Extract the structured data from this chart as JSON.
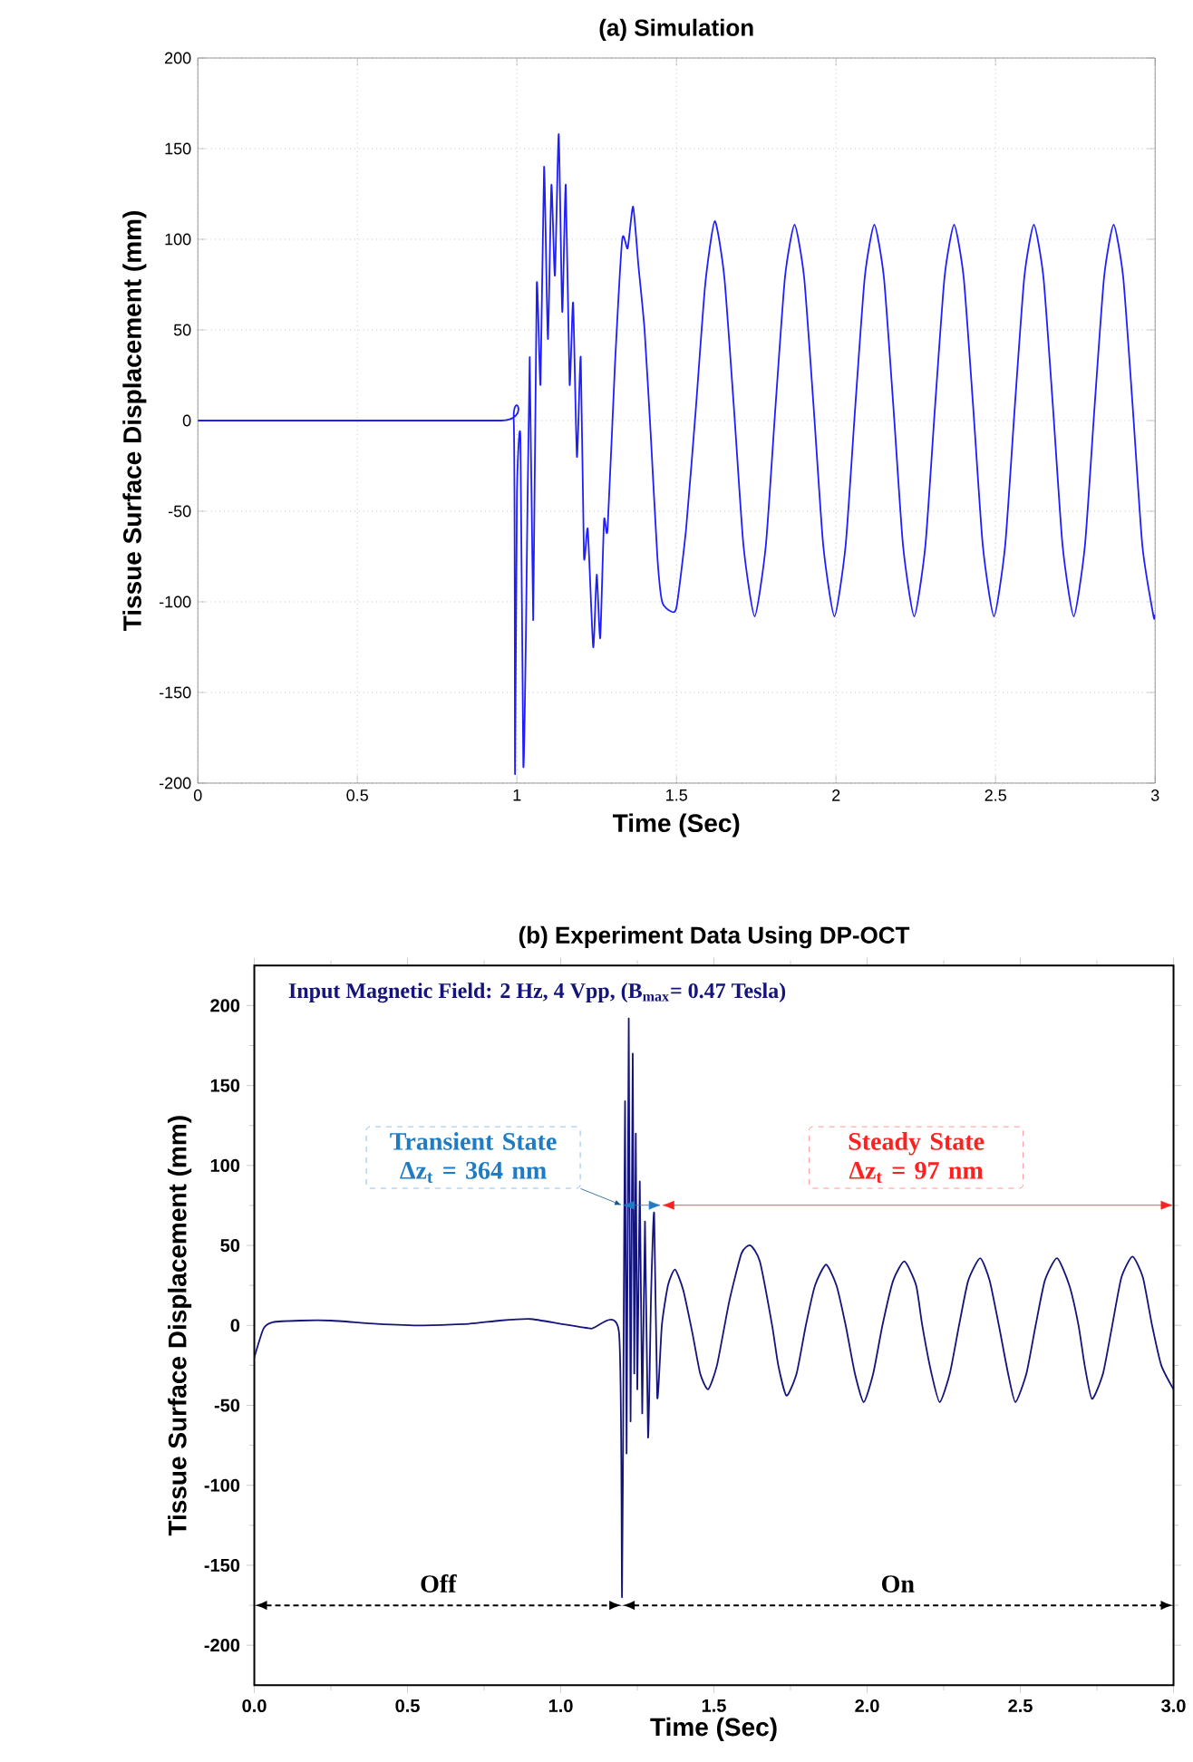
{
  "chart_data": [
    {
      "type": "line",
      "title": "(a) Simulation",
      "xlabel": "Time (Sec)",
      "ylabel": "Tissue Surface Displacement (mm)",
      "xlim": [
        0,
        3
      ],
      "ylim": [
        -200,
        200
      ],
      "xticks": [
        0,
        0.5,
        1,
        1.5,
        2,
        2.5,
        3
      ],
      "yticks": [
        -200,
        -150,
        -100,
        -50,
        0,
        50,
        100,
        150,
        200
      ],
      "grid": true,
      "series": [
        {
          "color": "#1e1eff",
          "x": [
            0,
            0.95,
            0.99,
            0.994,
            1.0,
            1.011,
            1.02,
            1.028,
            1.04,
            1.051,
            1.062,
            1.074,
            1.085,
            1.097,
            1.108,
            1.119,
            1.131,
            1.142,
            1.153,
            1.165,
            1.176,
            1.188,
            1.2,
            1.21,
            1.222,
            1.239,
            1.25,
            1.261,
            1.273,
            1.284,
            1.307,
            1.33,
            1.347,
            1.364,
            1.381,
            1.4,
            1.42,
            1.44,
            1.455,
            1.48,
            1.5,
            1.53,
            1.56,
            1.59,
            1.62,
            1.65,
            1.68,
            1.71,
            1.745,
            1.78,
            1.81,
            1.84,
            1.87,
            1.9,
            1.93,
            1.96,
            1.995,
            2.03,
            2.06,
            2.09,
            2.12,
            2.15,
            2.18,
            2.21,
            2.245,
            2.28,
            2.31,
            2.34,
            2.37,
            2.4,
            2.43,
            2.46,
            2.495,
            2.53,
            2.56,
            2.59,
            2.62,
            2.65,
            2.68,
            2.71,
            2.745,
            2.78,
            2.81,
            2.84,
            2.87,
            2.9,
            2.93,
            2.96,
            2.995,
            3.0
          ],
          "values": [
            0,
            0,
            0,
            -195,
            -40,
            -10,
            -190,
            -120,
            35,
            -110,
            75,
            20,
            140,
            45,
            130,
            80,
            158,
            60,
            130,
            20,
            65,
            -20,
            35,
            -75,
            -60,
            -125,
            -85,
            -120,
            -55,
            -60,
            30,
            100,
            95,
            118,
            85,
            50,
            -10,
            -75,
            -100,
            -105,
            -103,
            -60,
            5,
            75,
            110,
            79,
            7,
            -69,
            -108,
            -69,
            7,
            79,
            108,
            79,
            7,
            -69,
            -108,
            -69,
            7,
            79,
            108,
            79,
            7,
            -69,
            -108,
            -69,
            7,
            79,
            108,
            79,
            7,
            -69,
            -108,
            -69,
            7,
            79,
            108,
            79,
            7,
            -69,
            -108,
            -69,
            7,
            79,
            108,
            79,
            7,
            -69,
            -108,
            -107
          ]
        }
      ]
    },
    {
      "type": "line",
      "title": "(b) Experiment Data Using DP-OCT",
      "xlabel": "Time (Sec)",
      "ylabel": "Tissue Surface Displacement (mm)",
      "xlim": [
        0,
        3
      ],
      "ylim": [
        -225,
        225
      ],
      "xticks": [
        {
          "value": 0,
          "label": "0.0"
        },
        {
          "value": 0.5,
          "label": "0.5"
        },
        {
          "value": 1,
          "label": "1.0"
        },
        {
          "value": 1.5,
          "label": "1.5"
        },
        {
          "value": 2,
          "label": "2.0"
        },
        {
          "value": 2.5,
          "label": "2.5"
        },
        {
          "value": 3,
          "label": "3.0"
        }
      ],
      "yticks": [
        -200,
        -150,
        -100,
        -50,
        0,
        50,
        100,
        150,
        200
      ],
      "grid": false,
      "annotations": [
        "Input Magnetic Field: 2 Hz, 4 Vpp, (B$_{max}$= 0.47 Tesla)",
        "Transient State Δz$_{t}$ = 364 nm",
        "Steady State Δz$_{t}$ = 97 nm",
        "Off",
        "On"
      ],
      "series": [
        {
          "color": "#14147a",
          "x": [
            0,
            0.03,
            0.06,
            0.15,
            0.25,
            0.4,
            0.55,
            0.7,
            0.8,
            0.9,
            1.0,
            1.1,
            1.19,
            1.2,
            1.205,
            1.21,
            1.215,
            1.222,
            1.228,
            1.235,
            1.24,
            1.245,
            1.25,
            1.258,
            1.266,
            1.275,
            1.285,
            1.295,
            1.305,
            1.315,
            1.33,
            1.35,
            1.373,
            1.4,
            1.43,
            1.455,
            1.481,
            1.51,
            1.55,
            1.59,
            1.619,
            1.65,
            1.69,
            1.71,
            1.737,
            1.77,
            1.8,
            1.83,
            1.866,
            1.9,
            1.93,
            1.96,
            1.989,
            2.02,
            2.05,
            2.085,
            2.122,
            2.16,
            2.18,
            2.21,
            2.237,
            2.27,
            2.3,
            2.33,
            2.369,
            2.4,
            2.43,
            2.46,
            2.484,
            2.52,
            2.55,
            2.58,
            2.62,
            2.66,
            2.69,
            2.71,
            2.734,
            2.77,
            2.8,
            2.83,
            2.866,
            2.9,
            2.93,
            2.96,
            3.0
          ],
          "values": [
            -20,
            -2,
            2,
            3,
            3,
            1,
            0,
            1,
            3,
            4,
            1,
            -2,
            -4,
            -170,
            -20,
            140,
            -80,
            192,
            -60,
            170,
            -30,
            120,
            -40,
            90,
            -55,
            65,
            -70,
            20,
            70,
            -45,
            0,
            25,
            35,
            22,
            -5,
            -30,
            -40,
            -25,
            15,
            45,
            50,
            40,
            0,
            -25,
            -44,
            -30,
            0,
            25,
            38,
            25,
            0,
            -30,
            -48,
            -30,
            0,
            28,
            40,
            25,
            0,
            -30,
            -48,
            -30,
            0,
            28,
            42,
            28,
            0,
            -30,
            -48,
            -30,
            0,
            28,
            42,
            25,
            0,
            -25,
            -46,
            -30,
            0,
            30,
            43,
            30,
            0,
            -25,
            -40
          ]
        }
      ]
    }
  ]
}
